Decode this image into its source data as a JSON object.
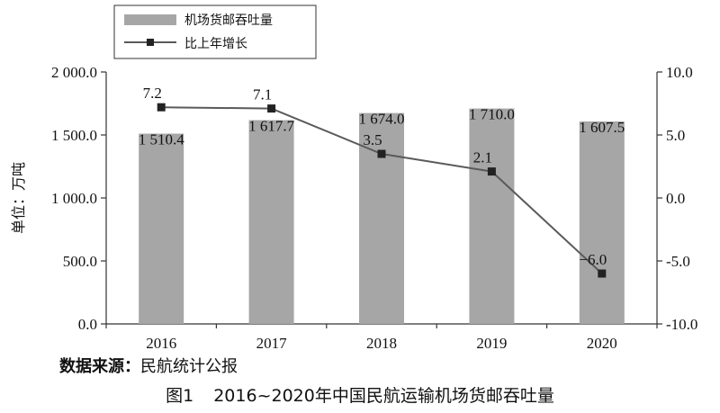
{
  "chart_data": {
    "type": "bar",
    "categories": [
      "2016",
      "2017",
      "2018",
      "2019",
      "2020"
    ],
    "series": [
      {
        "name": "机场货邮吞吐量",
        "type": "bar",
        "axis": "left",
        "values": [
          1510.4,
          1617.7,
          1674.0,
          1710.0,
          1607.5
        ],
        "labels": [
          "1 510.4",
          "1 617.7",
          "1 674.0",
          "1 710.0",
          "1 607.5"
        ]
      },
      {
        "name": "比上年增长",
        "type": "line",
        "axis": "right",
        "values": [
          7.2,
          7.1,
          3.5,
          2.1,
          -6.0
        ],
        "labels": [
          "7.2",
          "7.1",
          "3.5",
          "2.1",
          "−6.0"
        ]
      }
    ],
    "ylabel": "单位：万吨",
    "ylim": [
      0,
      2000
    ],
    "y2lim": [
      -10,
      10
    ],
    "yticks": [
      {
        "value": 0,
        "label": "0.0"
      },
      {
        "value": 500,
        "label": "500.0"
      },
      {
        "value": 1000,
        "label": "1 000.0"
      },
      {
        "value": 1500,
        "label": "1 500.0"
      },
      {
        "value": 2000,
        "label": "2 000.0"
      }
    ],
    "y2ticks": [
      {
        "value": -10,
        "label": "-10.0"
      },
      {
        "value": -5,
        "label": "-5.0"
      },
      {
        "value": 0,
        "label": "0.0"
      },
      {
        "value": 5,
        "label": "5.0"
      },
      {
        "value": 10,
        "label": "10.0"
      }
    ],
    "legend_position": "top-left",
    "grid": false,
    "colors": {
      "bar": "#a6a6a6",
      "line": "#5a5a5a",
      "marker": "#222222"
    }
  },
  "source": {
    "label": "数据来源：",
    "value": "民航统计公报"
  },
  "caption": {
    "number": "图1",
    "text": "2016~2020年中国民航运输机场货邮吞吐量"
  }
}
